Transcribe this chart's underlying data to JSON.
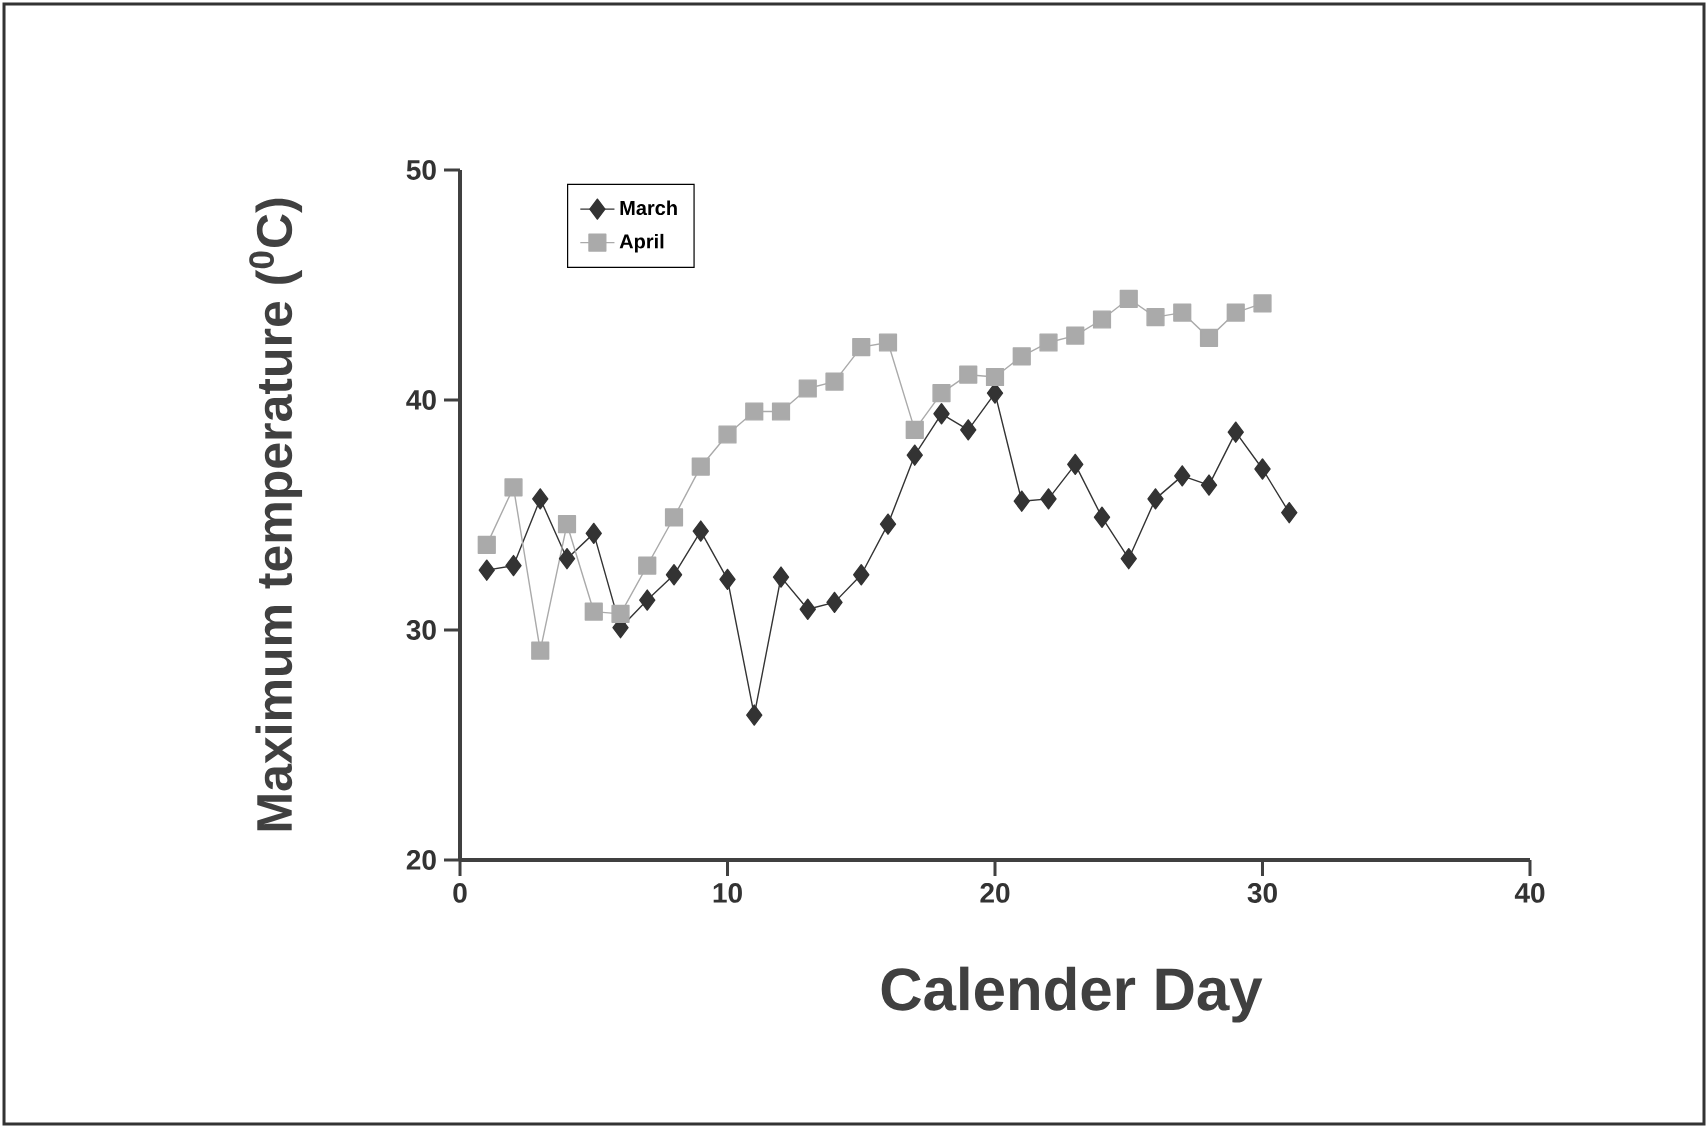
{
  "chart_data": {
    "type": "line",
    "xlabel": "Calender Day",
    "ylabel": "Maximum temperature ($^{0}$C)",
    "x": [
      1,
      2,
      3,
      4,
      5,
      6,
      7,
      8,
      9,
      10,
      11,
      12,
      13,
      14,
      15,
      16,
      17,
      18,
      19,
      20,
      21,
      22,
      23,
      24,
      25,
      26,
      27,
      28,
      29,
      30,
      31
    ],
    "series": [
      {
        "name": "March",
        "color": "#333333",
        "marker": "diamond",
        "values": [
          32.6,
          32.8,
          35.7,
          33.1,
          34.2,
          30.1,
          31.3,
          32.4,
          34.3,
          32.2,
          26.3,
          32.3,
          30.9,
          31.2,
          32.4,
          34.6,
          37.6,
          39.4,
          38.7,
          40.3,
          35.6,
          35.7,
          37.2,
          34.9,
          33.1,
          35.7,
          36.7,
          36.3,
          38.6,
          37.0,
          35.1
        ]
      },
      {
        "name": "April",
        "color": "#aaaaaa",
        "marker": "square",
        "values": [
          33.7,
          36.2,
          29.1,
          34.6,
          30.8,
          30.7,
          32.8,
          34.9,
          37.1,
          38.5,
          39.5,
          39.5,
          40.5,
          40.8,
          42.3,
          42.5,
          38.7,
          40.3,
          41.1,
          41.0,
          41.9,
          42.5,
          42.8,
          43.5,
          44.4,
          43.6,
          43.8,
          42.7,
          43.8,
          44.2,
          null
        ]
      }
    ],
    "line_style": "solid",
    "xlim": [
      0,
      40
    ],
    "ylim": [
      20,
      50
    ],
    "xticks": [
      0,
      10,
      20,
      30,
      40
    ],
    "yticks": [
      20,
      30,
      40,
      50
    ],
    "grid": false,
    "legend": "top left"
  }
}
